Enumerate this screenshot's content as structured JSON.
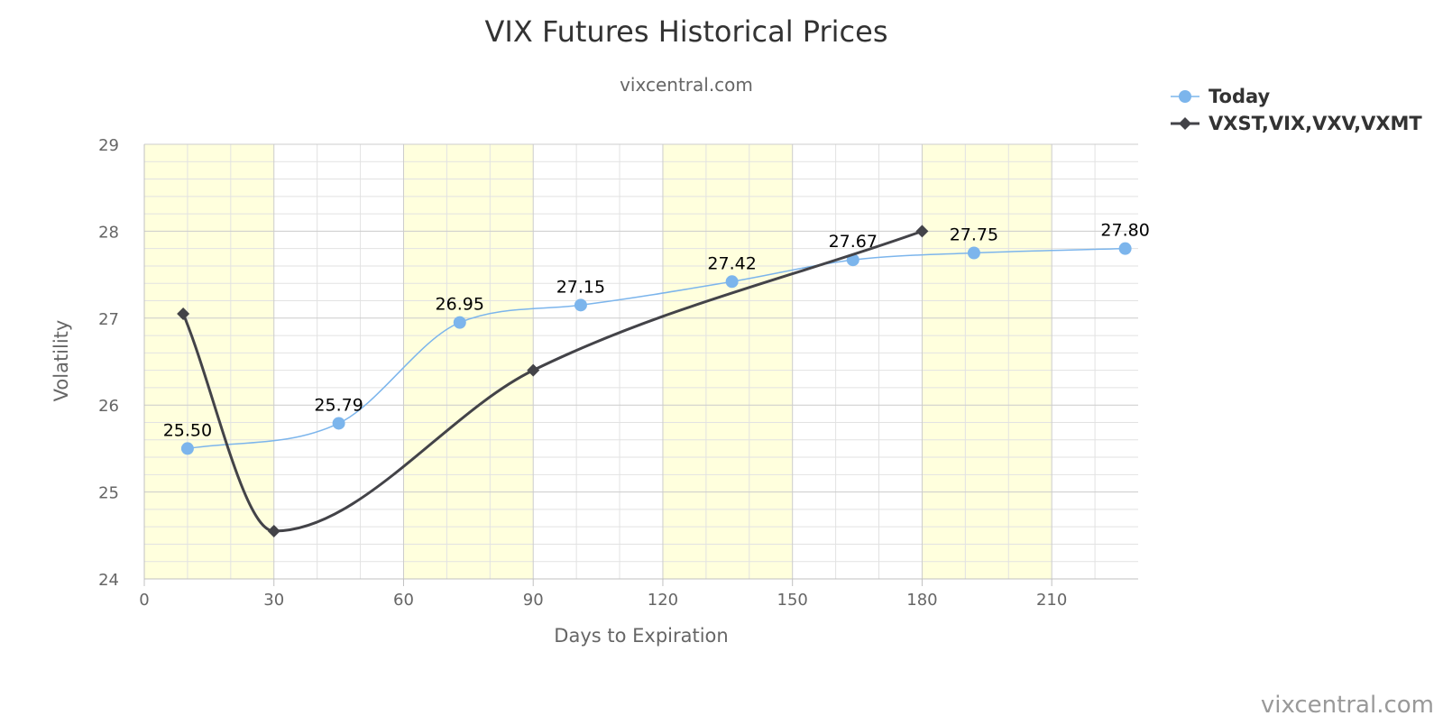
{
  "chart_data": {
    "type": "line",
    "title": "VIX Futures Historical Prices",
    "subtitle": "vixcentral.com",
    "xlabel": "Days to Expiration",
    "ylabel": "Volatility",
    "xlim": [
      0,
      230
    ],
    "ylim": [
      24,
      29
    ],
    "x_ticks": [
      0,
      30,
      60,
      90,
      120,
      150,
      180,
      210
    ],
    "y_ticks": [
      24,
      25,
      26,
      27,
      28,
      29
    ],
    "grid": true,
    "x_minor_step": 10,
    "y_minor_step": 0.2,
    "bands": [
      [
        0,
        30
      ],
      [
        60,
        90
      ],
      [
        120,
        150
      ],
      [
        180,
        210
      ]
    ],
    "band_color": "#ffffdd",
    "legend_position": "top-right",
    "series": [
      {
        "name": "Today",
        "color": "#7cb5ec",
        "marker": "circle",
        "x": [
          10,
          45,
          73,
          101,
          136,
          164,
          192,
          227
        ],
        "y": [
          25.5,
          25.79,
          26.95,
          27.15,
          27.42,
          27.67,
          27.75,
          27.8
        ],
        "labels": [
          "25.50",
          "25.79",
          "26.95",
          "27.15",
          "27.42",
          "27.67",
          "27.75",
          "27.80"
        ]
      },
      {
        "name": "VXST,VIX,VXV,VXMT",
        "color": "#434348",
        "marker": "diamond",
        "x": [
          9,
          30,
          90,
          180
        ],
        "y": [
          27.05,
          24.55,
          26.4,
          28.0
        ]
      }
    ],
    "credit": "vixcentral.com"
  }
}
